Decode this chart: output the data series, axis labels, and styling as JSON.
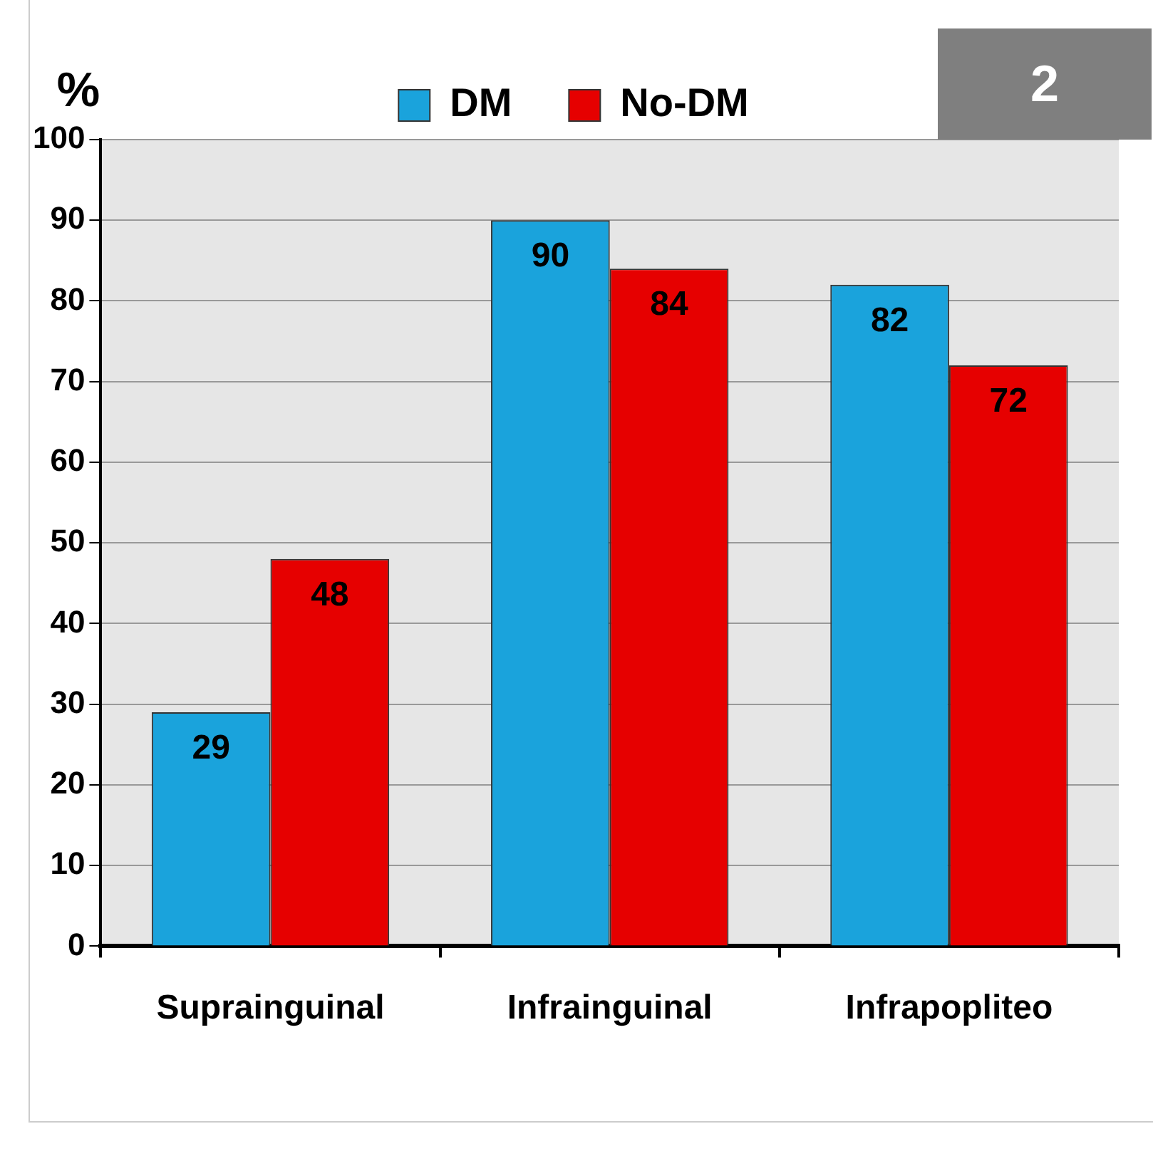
{
  "chart_data": {
    "type": "bar",
    "ylabel": "%",
    "annotations": [
      "2"
    ],
    "categories": [
      "Suprainguinal",
      "Infrainguinal",
      "Infrapopliteo"
    ],
    "series": [
      {
        "name": "DM",
        "color": "#1aa3dc",
        "values": [
          29,
          90,
          82
        ]
      },
      {
        "name": "No-DM",
        "color": "#e60000",
        "values": [
          48,
          84,
          72
        ]
      }
    ],
    "ylim": [
      0,
      100
    ],
    "yticks": [
      0,
      10,
      20,
      30,
      40,
      50,
      60,
      70,
      80,
      90,
      100
    ],
    "grid": "y",
    "legend": "top",
    "data_labels": true
  }
}
